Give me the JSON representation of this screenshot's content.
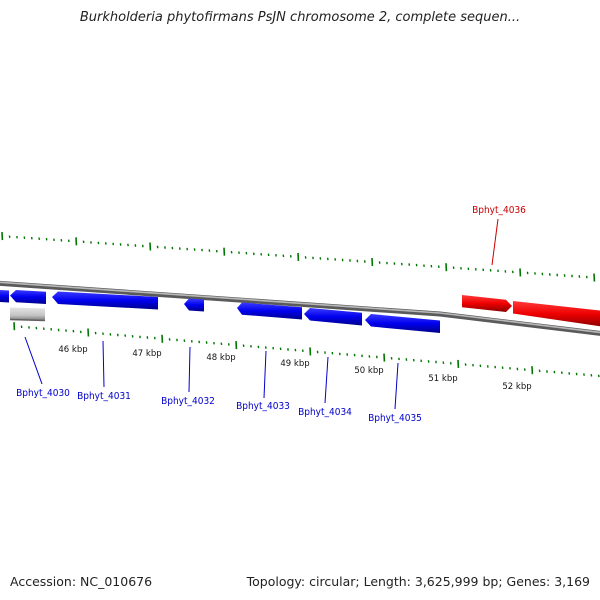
{
  "title": "Burkholderia phytofirmans PsJN chromosome 2, complete sequen...",
  "footer": {
    "accession": "Accession: NC_010676",
    "topology": "Topology: circular; Length: 3,625,999 bp; Genes: 3,169"
  },
  "scale_labels": [
    "46 kbp",
    "47 kbp",
    "48 kbp",
    "49 kbp",
    "50 kbp",
    "51 kbp",
    "52 kbp"
  ],
  "gene_labels": [
    "Bphyt_4030",
    "Bphyt_4031",
    "Bphyt_4032",
    "Bphyt_4033",
    "Bphyt_4034",
    "Bphyt_4035",
    "Bphyt_4036"
  ],
  "colors": {
    "reverse_strand_gene": "#0000ee",
    "forward_strand_gene": "#ee0000",
    "rna_gene": "#c8c8c8",
    "tick": "#007700",
    "backbone": "#808080"
  }
}
